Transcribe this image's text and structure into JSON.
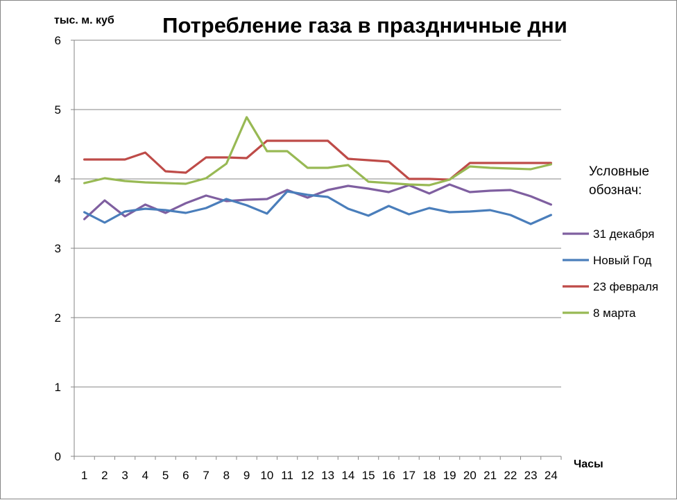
{
  "chart_data": {
    "type": "line",
    "title": "Потребление газа в праздничные дни",
    "ylabel": "тыс. м. куб",
    "xlabel": "Часы",
    "ylim": [
      0,
      6
    ],
    "yticks": [
      "0",
      "1",
      "2",
      "3",
      "4",
      "5",
      "6"
    ],
    "categories": [
      "1",
      "2",
      "3",
      "4",
      "5",
      "6",
      "7",
      "8",
      "9",
      "10",
      "11",
      "12",
      "13",
      "14",
      "15",
      "16",
      "17",
      "18",
      "19",
      "20",
      "21",
      "22",
      "23",
      "24"
    ],
    "grid": true,
    "legend": {
      "title_lines": [
        "Условные",
        "обознач:"
      ],
      "placement": "right"
    },
    "series": [
      {
        "name": "31 декабря",
        "color": "#7f5fa0",
        "values": [
          3.42,
          3.69,
          3.46,
          3.63,
          3.51,
          3.65,
          3.76,
          3.68,
          3.7,
          3.71,
          3.84,
          3.73,
          3.84,
          3.9,
          3.86,
          3.81,
          3.91,
          3.79,
          3.92,
          3.81,
          3.83,
          3.84,
          3.75,
          3.63
        ]
      },
      {
        "name": "Новый Год",
        "color": "#4a7ebb",
        "values": [
          3.52,
          3.37,
          3.53,
          3.57,
          3.55,
          3.51,
          3.58,
          3.71,
          3.62,
          3.5,
          3.82,
          3.77,
          3.74,
          3.57,
          3.47,
          3.61,
          3.49,
          3.58,
          3.52,
          3.53,
          3.55,
          3.48,
          3.35,
          3.48
        ]
      },
      {
        "name": "23 февраля",
        "color": "#be4b48",
        "values": [
          4.28,
          4.28,
          4.28,
          4.38,
          4.11,
          4.09,
          4.31,
          4.31,
          4.3,
          4.55,
          4.55,
          4.55,
          4.55,
          4.29,
          4.27,
          4.25,
          4.0,
          4.0,
          3.99,
          4.23,
          4.23,
          4.23,
          4.23,
          4.23
        ]
      },
      {
        "name": "8 марта",
        "color": "#98b954",
        "values": [
          3.94,
          4.01,
          3.97,
          3.95,
          3.94,
          3.93,
          4.01,
          4.22,
          4.89,
          4.4,
          4.4,
          4.16,
          4.16,
          4.2,
          3.96,
          3.94,
          3.92,
          3.91,
          3.99,
          4.18,
          4.16,
          4.15,
          4.14,
          4.21
        ]
      }
    ]
  }
}
